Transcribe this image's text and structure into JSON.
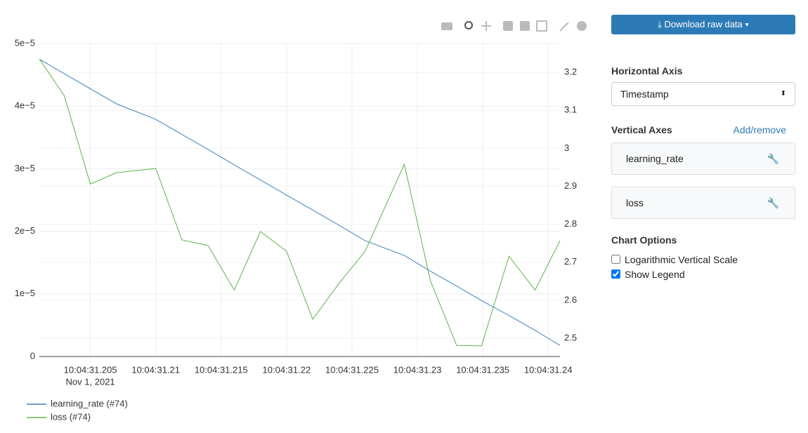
{
  "chart_data": {
    "type": "line",
    "x": [
      31.2011,
      31.203,
      31.205,
      31.207,
      31.21,
      31.212,
      31.214,
      31.216,
      31.218,
      31.22,
      31.222,
      31.224,
      31.226,
      31.229,
      31.231,
      31.233,
      31.2349,
      31.237,
      31.239,
      31.2409
    ],
    "series": [
      {
        "name": "learning_rate (#74)",
        "color": "#3f7fbf",
        "values": [
          4.75e-05,
          4.519e-05,
          4.277e-05,
          4.036e-05,
          3.789e-05,
          3.548e-05,
          3.308e-05,
          3.061e-05,
          2.82e-05,
          2.578e-05,
          2.339e-05,
          2.098e-05,
          1.85e-05,
          1.614e-05,
          1.363e-05,
          1.126e-05,
          8.94e-06,
          6.56e-06,
          4.17e-06,
          1.79e-06
        ]
      },
      {
        "name": "loss (#74)",
        "color": "#5ab54a",
        "axis": "y2",
        "values": [
          3.235,
          3.139,
          2.906,
          2.936,
          2.947,
          2.759,
          2.744,
          2.627,
          2.781,
          2.729,
          2.55,
          2.644,
          2.729,
          2.958,
          2.651,
          2.481,
          2.48,
          2.716,
          2.627,
          2.757
        ]
      }
    ],
    "xlim": [
      31.2011,
      31.2409
    ],
    "xticks": [
      {
        "value": 31.205,
        "label": "10:04:31.205"
      },
      {
        "value": 31.21,
        "label": "10:04:31.21"
      },
      {
        "value": 31.215,
        "label": "10:04:31.215"
      },
      {
        "value": 31.22,
        "label": "10:04:31.22"
      },
      {
        "value": 31.225,
        "label": "10:04:31.225"
      },
      {
        "value": 31.23,
        "label": "10:04:31.23"
      },
      {
        "value": 31.235,
        "label": "10:04:31.235"
      },
      {
        "value": 31.24,
        "label": "10:04:31.24"
      }
    ],
    "x_date_label": "Nov 1, 2021",
    "ylim": [
      0,
      5e-05
    ],
    "yticks": [
      0,
      {
        "value": 1e-05,
        "label": "1e−5"
      },
      {
        "value": 2e-05,
        "label": "2e−5"
      },
      {
        "value": 3e-05,
        "label": "3e−5"
      },
      {
        "value": 4e-05,
        "label": "4e−5"
      },
      {
        "value": 5e-05,
        "label": "5e−5"
      }
    ],
    "y2lim": [
      2.452,
      3.276
    ],
    "y2ticks": [
      2.5,
      2.6,
      2.7,
      2.8,
      2.9,
      3,
      3.1,
      3.2
    ],
    "grid": true,
    "log_scale": false,
    "legend": true
  },
  "controls": {
    "download": "Download raw data",
    "horizontal_axis": {
      "title": "Horizontal Axis",
      "value": "Timestamp"
    },
    "vertical_axes": {
      "title": "Vertical Axes",
      "action": "Add/remove",
      "items": [
        "learning_rate",
        "loss"
      ]
    },
    "chart_options": {
      "title": "Chart Options",
      "options": [
        {
          "label": "Logarithmic Vertical Scale",
          "checked": false
        },
        {
          "label": "Show Legend",
          "checked": true
        }
      ]
    }
  }
}
